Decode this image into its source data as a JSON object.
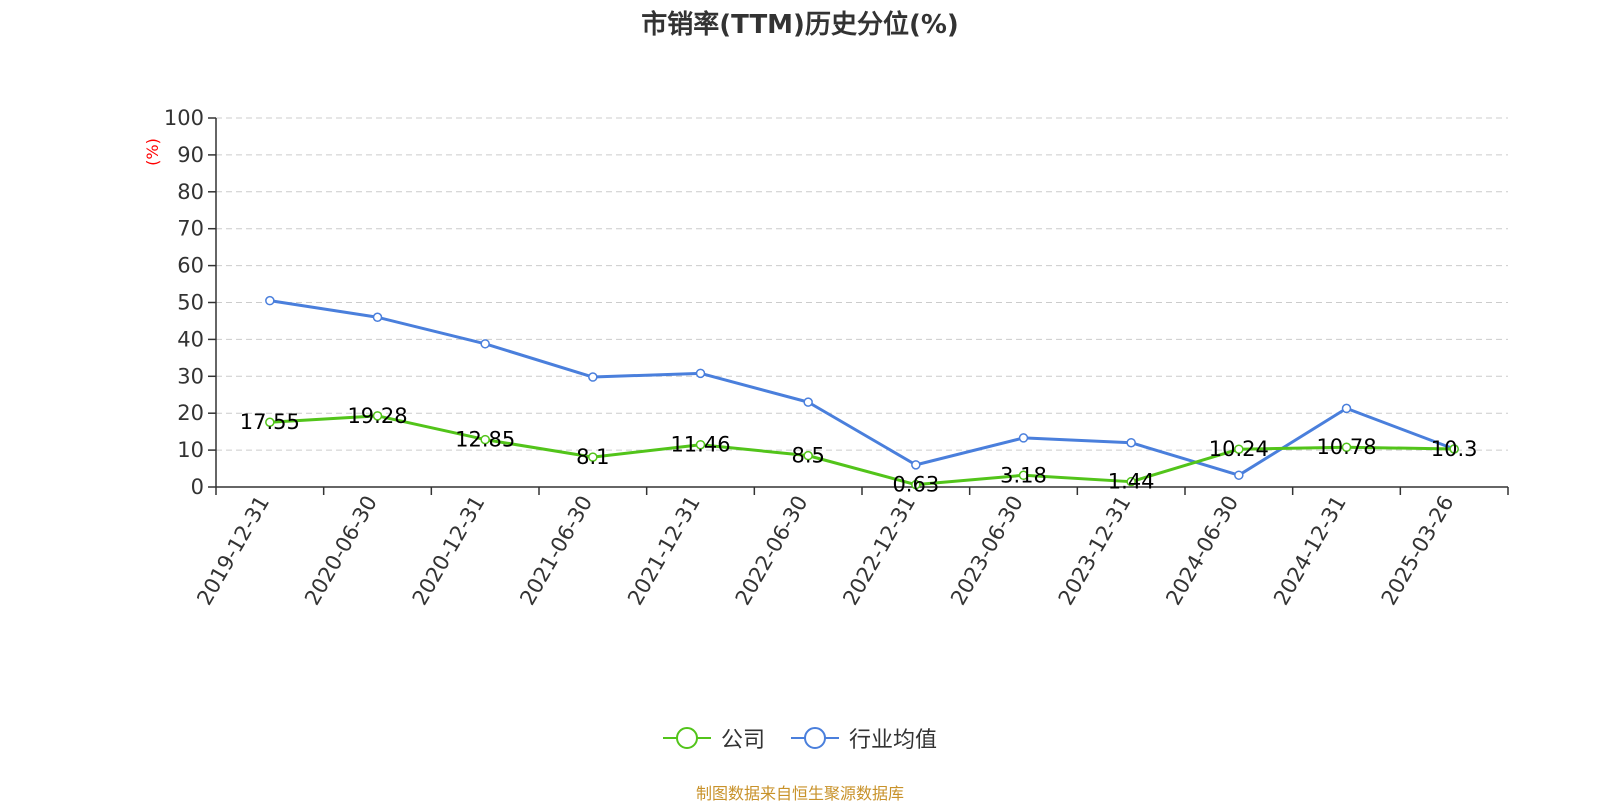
{
  "chart_data": {
    "type": "line",
    "title": "市销率(TTM)历史分位(%)",
    "ylabel": "(%)",
    "ylim": [
      0,
      100
    ],
    "yticks": [
      0,
      10,
      20,
      30,
      40,
      50,
      60,
      70,
      80,
      90,
      100
    ],
    "grid": true,
    "legend_position": "bottom",
    "categories": [
      "2019-12-31",
      "2020-06-30",
      "2020-12-31",
      "2021-06-30",
      "2021-12-31",
      "2022-06-30",
      "2022-12-31",
      "2023-06-30",
      "2023-12-31",
      "2024-06-30",
      "2024-12-31",
      "2025-03-26"
    ],
    "series": [
      {
        "name": "公司",
        "color": "#52c41a",
        "values": [
          17.55,
          19.28,
          12.85,
          8.1,
          11.46,
          8.5,
          0.63,
          3.18,
          1.44,
          10.24,
          10.78,
          10.3
        ],
        "labels": [
          "17.55",
          "19.28",
          "12.85",
          "8.1",
          "11.46",
          "8.5",
          "0.63",
          "3.18",
          "1.44",
          "10.24",
          "10.78",
          "10.3"
        ]
      },
      {
        "name": "行业均值",
        "color": "#4a7fdc",
        "values": [
          50.5,
          46,
          38.8,
          29.8,
          30.8,
          23,
          6,
          13.3,
          12,
          3.2,
          21.3,
          10.3
        ]
      }
    ]
  },
  "source_note": "制图数据来自恒生聚源数据库"
}
